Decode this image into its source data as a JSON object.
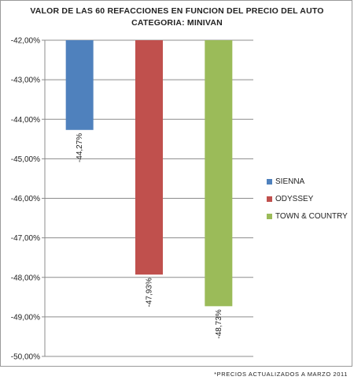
{
  "chart_data": {
    "type": "bar",
    "title": "VALOR DE LAS 60 REFACCIONES EN FUNCION DEL PRECIO DEL AUTO",
    "subtitle": "CATEGORIA: MINIVAN",
    "categories": [
      "SIENNA",
      "ODYSSEY",
      "TOWN & COUNTRY"
    ],
    "values": [
      -44.27,
      -47.93,
      -48.73
    ],
    "data_labels": [
      "-44,27%",
      "-47,93%",
      "-48,73%"
    ],
    "colors": [
      "#4f81bd",
      "#c0504d",
      "#9bbb59"
    ],
    "ylim": [
      -50,
      -42
    ],
    "yticks": [
      -42,
      -43,
      -44,
      -45,
      -46,
      -47,
      -48,
      -49,
      -50
    ],
    "ytick_labels": [
      "-42,00%",
      "-43,00%",
      "-44,00%",
      "-45,00%",
      "-46,00%",
      "-47,00%",
      "-48,00%",
      "-49,00%",
      "-50,00%"
    ],
    "grid": true,
    "legend_position": "right",
    "xlabel": "",
    "ylabel": ""
  },
  "footnote": "*PRECIOS ACTUALIZADOS A MARZO 2011"
}
